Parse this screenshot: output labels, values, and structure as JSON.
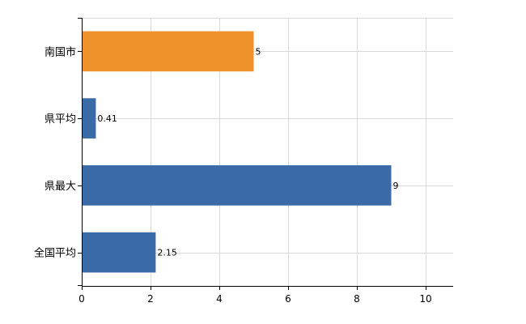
{
  "chart_data": {
    "type": "bar",
    "orientation": "horizontal",
    "categories": [
      "南国市",
      "県平均",
      "県最大",
      "全国平均"
    ],
    "values": [
      5,
      0.41,
      9,
      2.15
    ],
    "data_labels": [
      "5",
      "0.41",
      "9",
      "2.15"
    ],
    "bar_colors": [
      "#f0922c",
      "#3a6ba8",
      "#3a6ba8",
      "#3a6ba8"
    ],
    "xlim": [
      0,
      10.8
    ],
    "xticks": [
      0,
      2,
      4,
      6,
      8,
      10
    ],
    "xtick_labels": [
      "0",
      "2",
      "4",
      "6",
      "8",
      "10"
    ],
    "grid": true,
    "legend": "none",
    "title": "",
    "xlabel": "",
    "ylabel": ""
  }
}
